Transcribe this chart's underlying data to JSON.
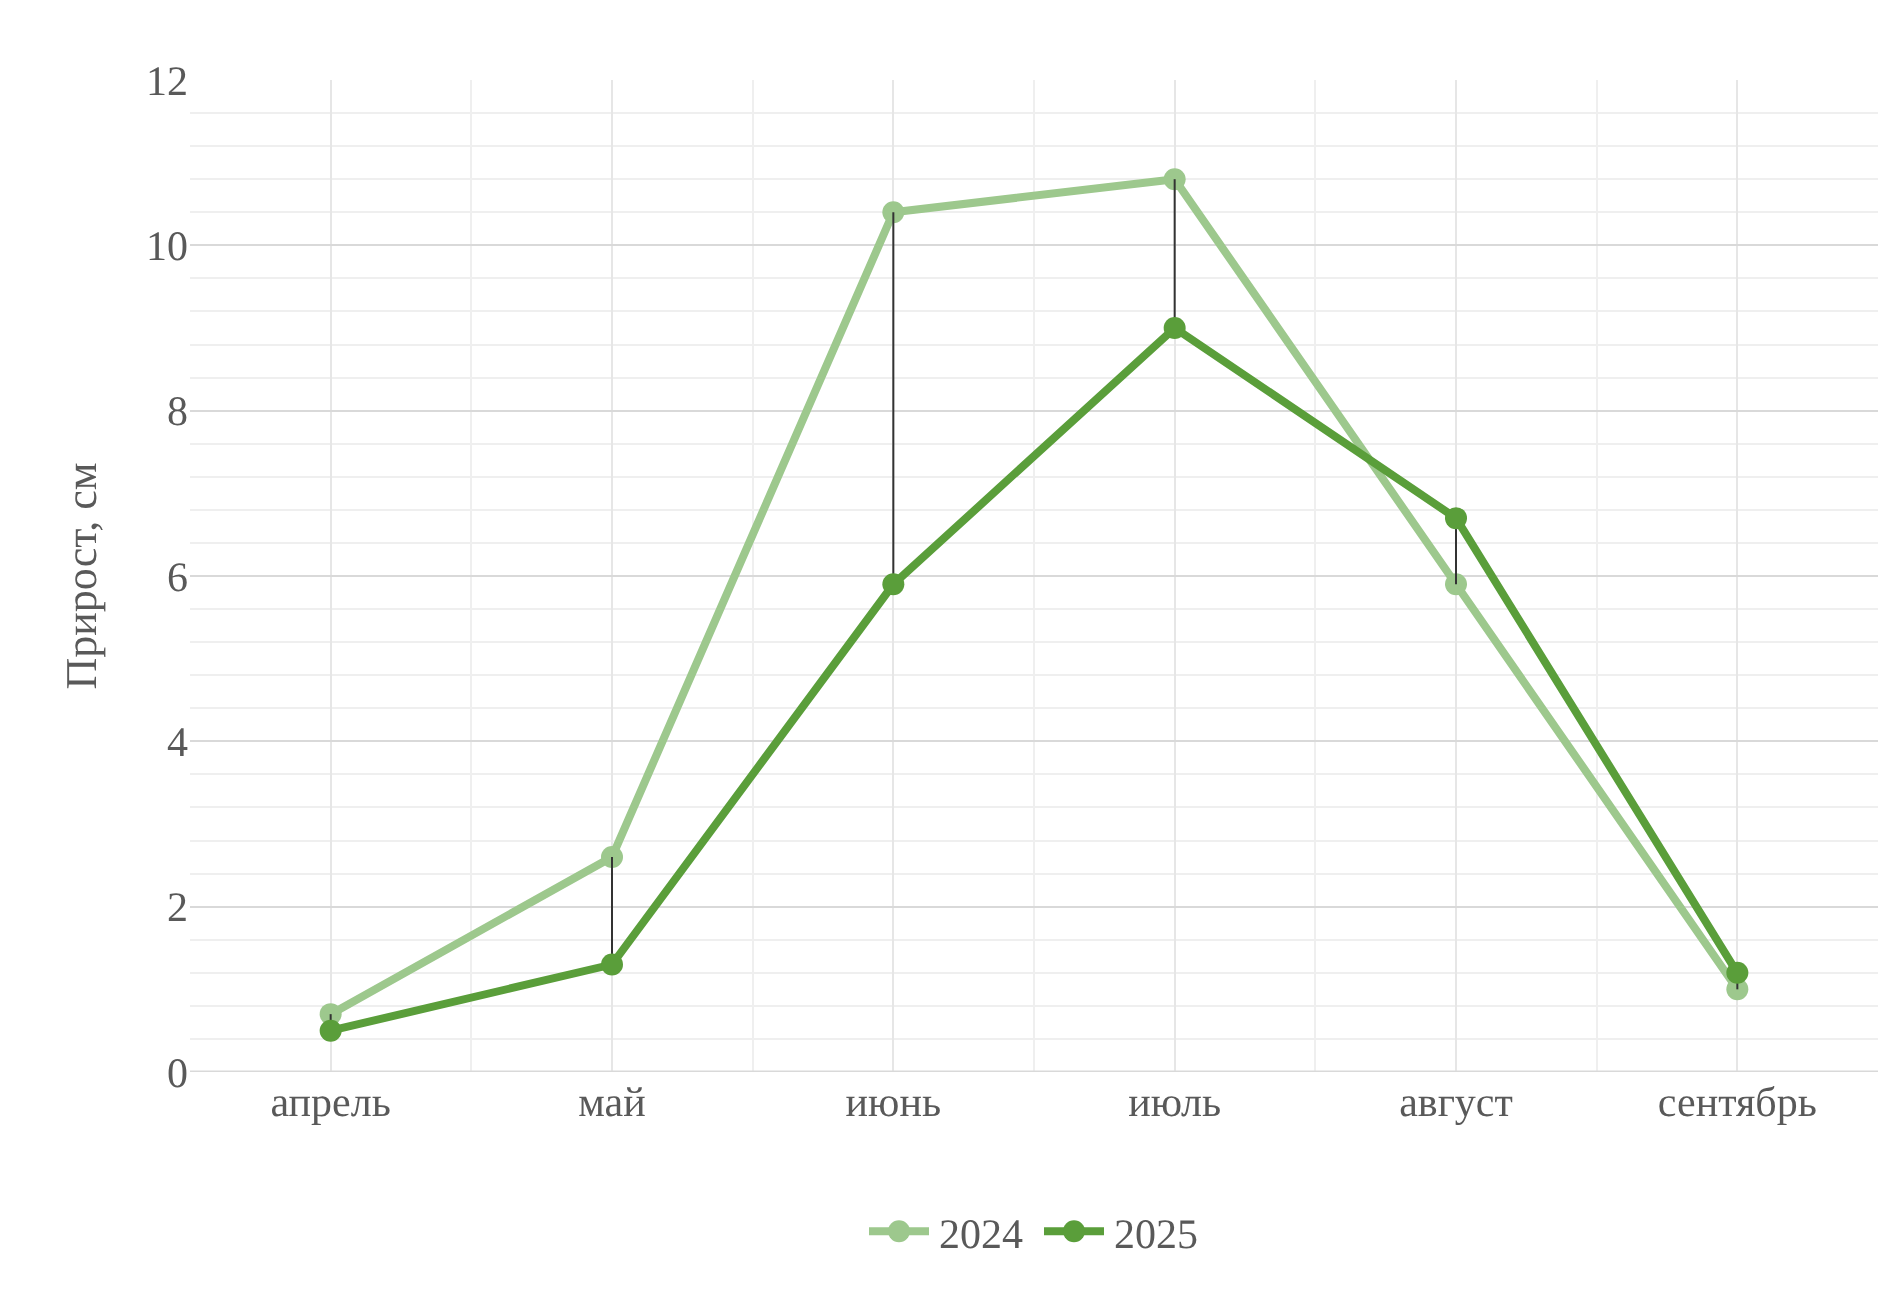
{
  "chart_data": {
    "type": "line",
    "ylabel": "Прирост, см",
    "categories": [
      "апрель",
      "май",
      "июнь",
      "июль",
      "август",
      "сентябрь"
    ],
    "series": [
      {
        "name": "2024",
        "color": "#9dc88d",
        "values": [
          0.7,
          2.6,
          10.4,
          10.8,
          5.9,
          1.0
        ]
      },
      {
        "name": "2025",
        "color": "#5a9e3a",
        "values": [
          0.5,
          1.3,
          5.9,
          9.0,
          6.7,
          1.2
        ],
        "errors": [
          [
            0.5,
            0.7
          ],
          [
            1.3,
            2.6
          ],
          [
            5.9,
            10.4
          ],
          [
            9.0,
            10.8
          ],
          [
            5.9,
            6.7
          ],
          [
            1.0,
            1.2
          ]
        ]
      }
    ],
    "ylim": [
      0,
      12
    ],
    "yticks": [
      0,
      2,
      4,
      6,
      8,
      10,
      12
    ],
    "grid": true,
    "legend": "bottom",
    "marker": "circle",
    "line_style": "solid"
  }
}
